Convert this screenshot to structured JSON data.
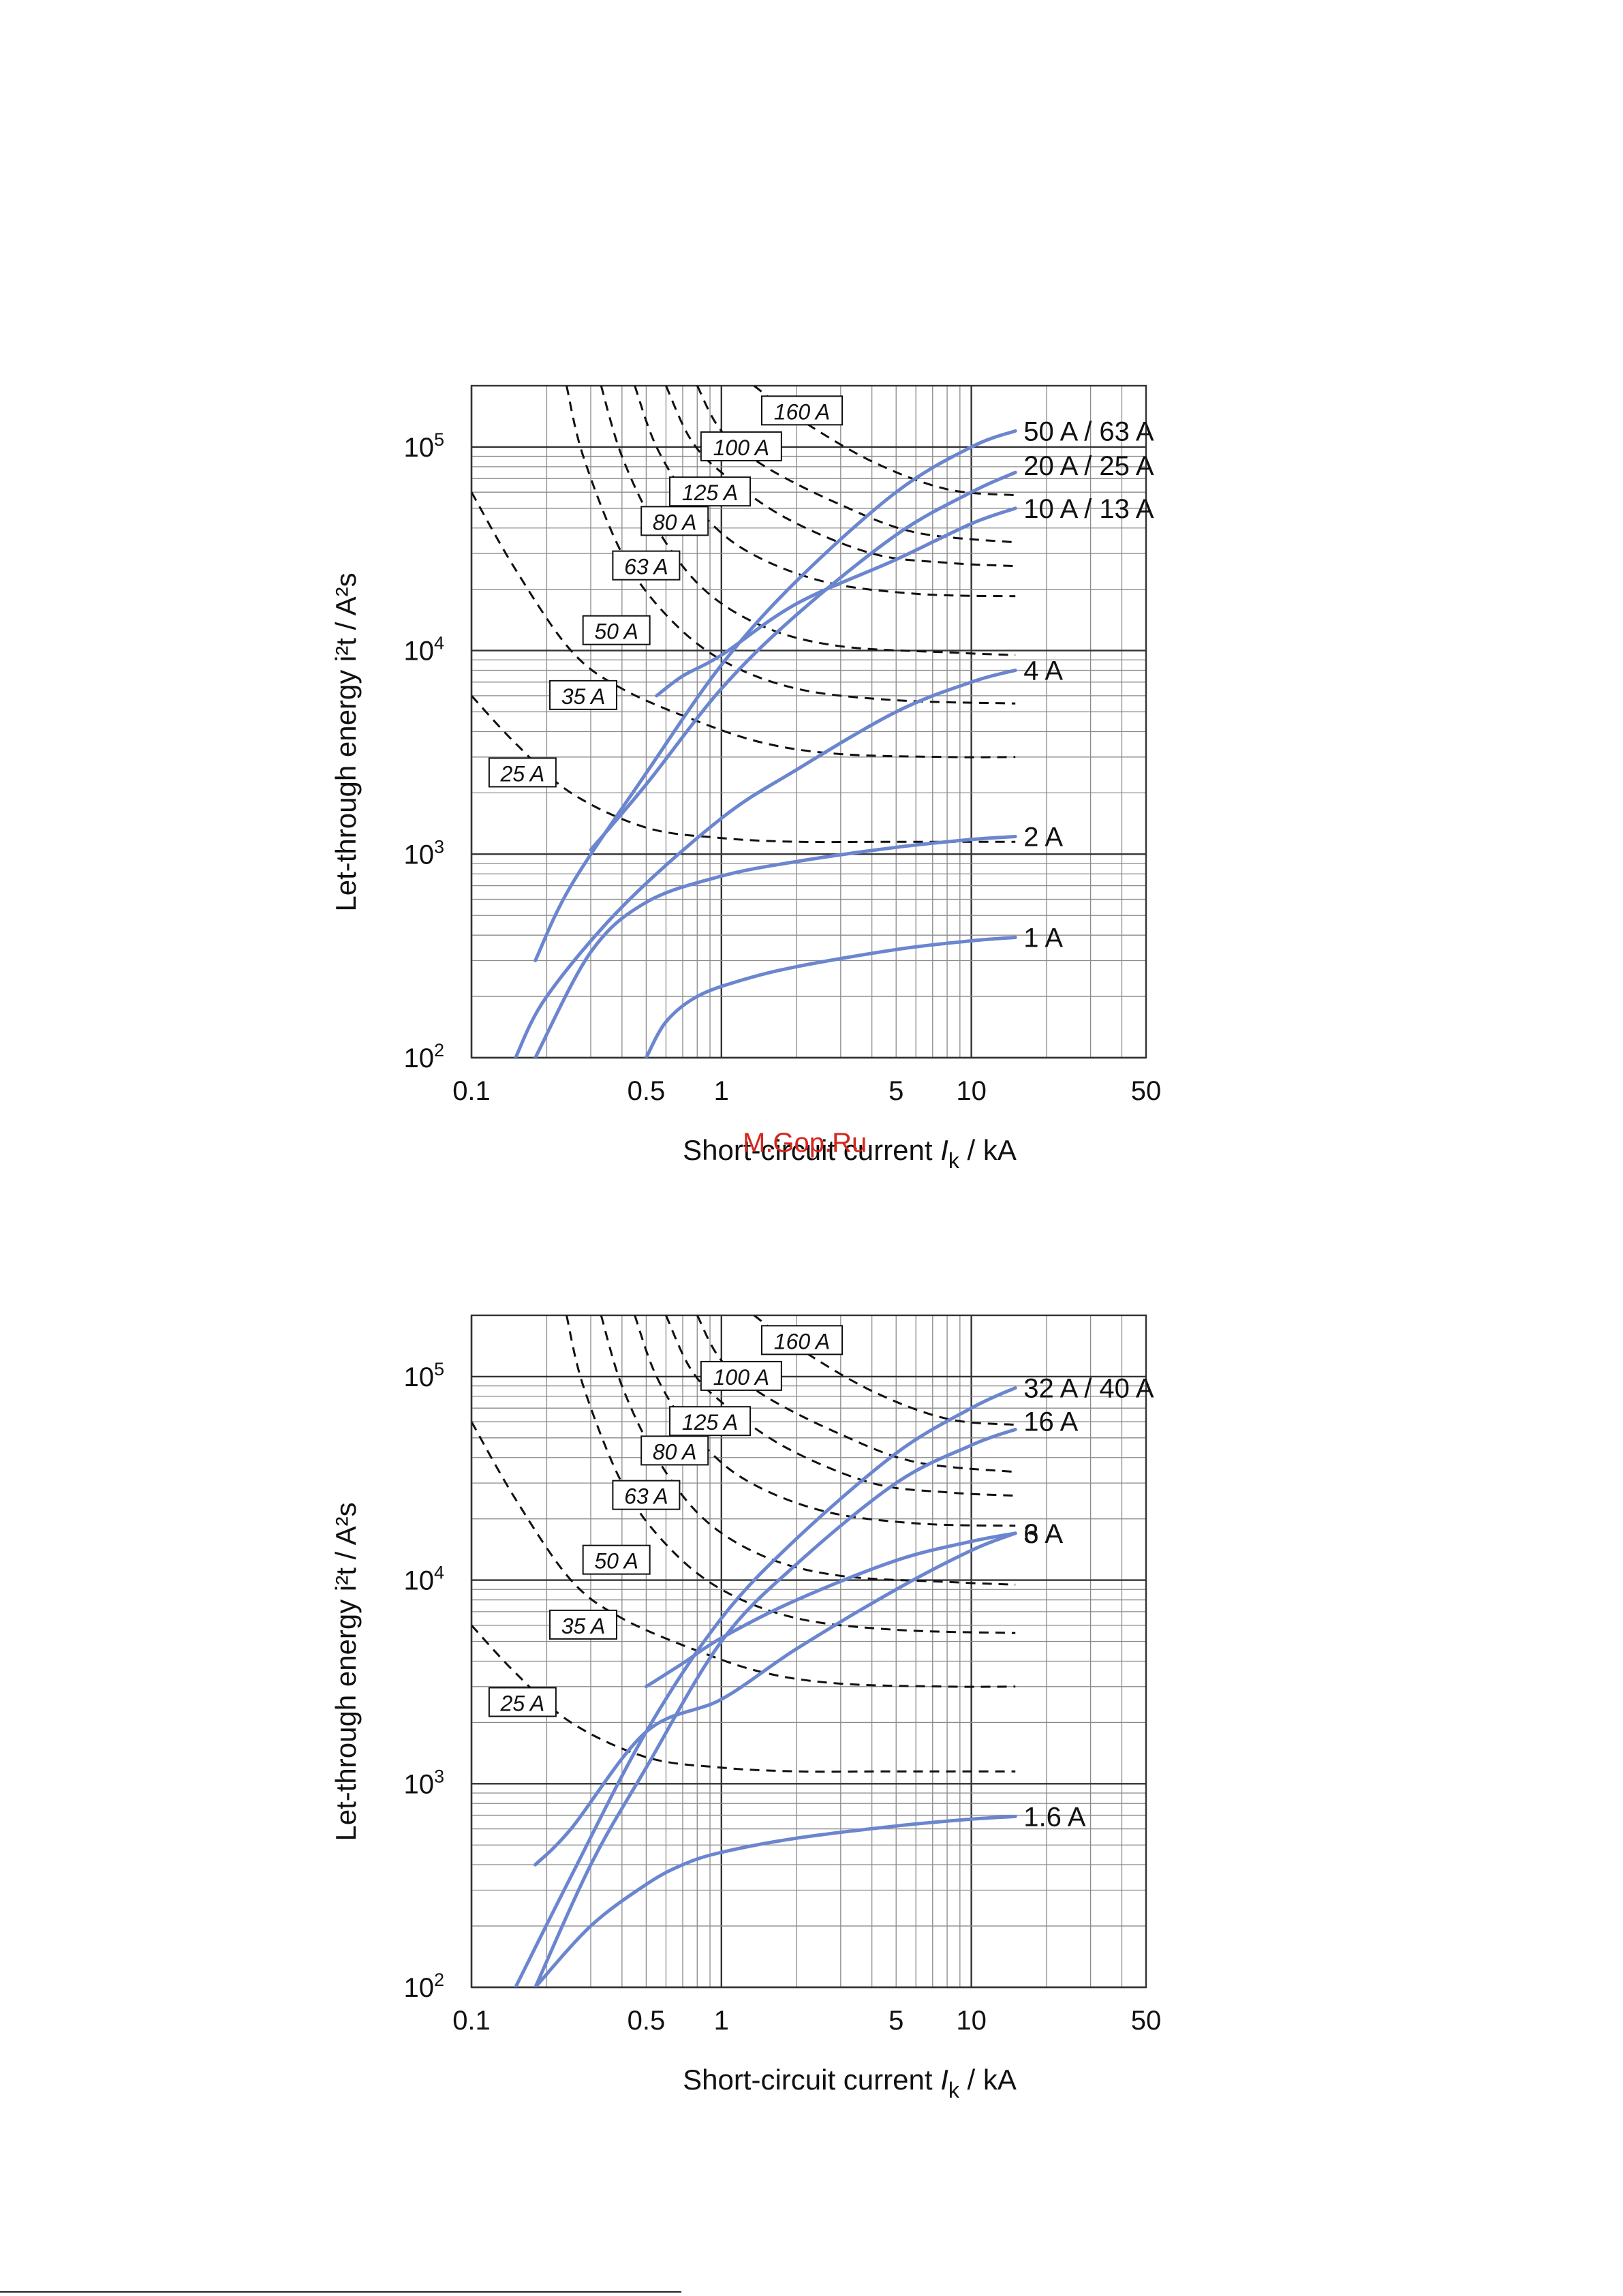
{
  "watermark": "M.Gop.Ru",
  "chart_data": [
    {
      "type": "line",
      "scale": "log-log",
      "xlabel": "Short-circuit current",
      "xlabel_symbol": "I",
      "xlabel_subscript": "k",
      "xlabel_unit": "/ kA",
      "ylabel": "Let-through energy i²t / A²s",
      "xlim": [
        0.1,
        50
      ],
      "ylim": [
        100,
        200000
      ],
      "xticks": [
        {
          "v": 0.1,
          "label": "0.1"
        },
        {
          "v": 0.5,
          "label": "0.5"
        },
        {
          "v": 1,
          "label": "1"
        },
        {
          "v": 5,
          "label": "5"
        },
        {
          "v": 10,
          "label": "10"
        },
        {
          "v": 50,
          "label": "50"
        }
      ],
      "yticks": [
        {
          "v": 100,
          "base": "10",
          "exp": "2"
        },
        {
          "v": 1000,
          "base": "10",
          "exp": "3"
        },
        {
          "v": 10000,
          "base": "10",
          "exp": "4"
        },
        {
          "v": 100000,
          "base": "10",
          "exp": "5"
        }
      ],
      "fuse_curves": [
        {
          "label": "25 A",
          "label_at": [
            0.16,
            2500
          ],
          "points": [
            [
              0.1,
              6000
            ],
            [
              0.15,
              3500
            ],
            [
              0.25,
              2000
            ],
            [
              0.5,
              1350
            ],
            [
              1,
              1200
            ],
            [
              2,
              1150
            ],
            [
              5,
              1150
            ],
            [
              15,
              1150
            ]
          ]
        },
        {
          "label": "35 A",
          "label_at": [
            0.28,
            6000
          ],
          "points": [
            [
              0.1,
              60000
            ],
            [
              0.15,
              25000
            ],
            [
              0.25,
              10000
            ],
            [
              0.4,
              6500
            ],
            [
              0.8,
              4500
            ],
            [
              1.5,
              3500
            ],
            [
              3,
              3100
            ],
            [
              8,
              3000
            ],
            [
              15,
              3000
            ]
          ]
        },
        {
          "label": "50 A",
          "label_at": [
            0.38,
            12500
          ],
          "points": [
            [
              0.24,
              200000
            ],
            [
              0.28,
              90000
            ],
            [
              0.4,
              30000
            ],
            [
              0.6,
              15000
            ],
            [
              1,
              9000
            ],
            [
              2,
              6500
            ],
            [
              5,
              5700
            ],
            [
              15,
              5500
            ]
          ]
        },
        {
          "label": "63 A",
          "label_at": [
            0.5,
            26000
          ],
          "points": [
            [
              0.33,
              200000
            ],
            [
              0.4,
              90000
            ],
            [
              0.55,
              40000
            ],
            [
              0.85,
              20000
            ],
            [
              1.5,
              13000
            ],
            [
              3,
              10500
            ],
            [
              8,
              9800
            ],
            [
              15,
              9500
            ]
          ]
        },
        {
          "label": "80 A",
          "label_at": [
            0.65,
            43000
          ],
          "points": [
            [
              0.45,
              200000
            ],
            [
              0.55,
              100000
            ],
            [
              0.75,
              55000
            ],
            [
              1.2,
              32000
            ],
            [
              2.5,
              22000
            ],
            [
              6,
              19000
            ],
            [
              15,
              18500
            ]
          ]
        },
        {
          "label": "125 A",
          "label_at": [
            0.9,
            60000
          ],
          "points": [
            [
              0.6,
              200000
            ],
            [
              0.75,
              110000
            ],
            [
              1,
              75000
            ],
            [
              1.8,
              45000
            ],
            [
              4,
              30000
            ],
            [
              8,
              27000
            ],
            [
              15,
              26000
            ]
          ]
        },
        {
          "label": "100 A",
          "label_at": [
            1.2,
            100000
          ],
          "points": [
            [
              0.8,
              200000
            ],
            [
              1,
              120000
            ],
            [
              1.5,
              80000
            ],
            [
              3,
              52000
            ],
            [
              6,
              38000
            ],
            [
              15,
              34000
            ]
          ]
        },
        {
          "label": "160 A",
          "label_at": [
            2.1,
            150000
          ],
          "points": [
            [
              1.35,
              200000
            ],
            [
              2,
              140000
            ],
            [
              4,
              85000
            ],
            [
              8,
              62000
            ],
            [
              15,
              58000
            ]
          ]
        }
      ],
      "series": [
        {
          "name": "50 A / 63 A",
          "points": [
            [
              0.18,
              300
            ],
            [
              0.25,
              700
            ],
            [
              0.5,
              2500
            ],
            [
              1,
              8500
            ],
            [
              2,
              22000
            ],
            [
              5,
              60000
            ],
            [
              10,
              100000
            ],
            [
              15,
              120000
            ]
          ]
        },
        {
          "name": "20 A / 25 A",
          "points": [
            [
              0.3,
              1050
            ],
            [
              0.5,
              2200
            ],
            [
              1,
              6500
            ],
            [
              2,
              15000
            ],
            [
              5,
              37000
            ],
            [
              10,
              60000
            ],
            [
              15,
              75000
            ]
          ]
        },
        {
          "name": "10 A / 13 A",
          "points": [
            [
              0.55,
              6000
            ],
            [
              0.7,
              7500
            ],
            [
              1,
              9500
            ],
            [
              2,
              17000
            ],
            [
              5,
              28000
            ],
            [
              10,
              42000
            ],
            [
              15,
              50000
            ]
          ]
        },
        {
          "name": "4 A",
          "points": [
            [
              0.15,
              100
            ],
            [
              0.2,
              200
            ],
            [
              0.4,
              550
            ],
            [
              1,
              1500
            ],
            [
              2,
              2600
            ],
            [
              5,
              5000
            ],
            [
              10,
              7000
            ],
            [
              15,
              8000
            ]
          ]
        },
        {
          "name": "2 A",
          "points": [
            [
              0.18,
              100
            ],
            [
              0.3,
              330
            ],
            [
              0.5,
              580
            ],
            [
              1,
              780
            ],
            [
              2,
              920
            ],
            [
              5,
              1080
            ],
            [
              10,
              1180
            ],
            [
              15,
              1220
            ]
          ]
        },
        {
          "name": "1 A",
          "points": [
            [
              0.5,
              100
            ],
            [
              0.6,
              150
            ],
            [
              0.8,
              200
            ],
            [
              1.2,
              240
            ],
            [
              2,
              280
            ],
            [
              5,
              340
            ],
            [
              10,
              375
            ],
            [
              15,
              390
            ]
          ]
        }
      ]
    },
    {
      "type": "line",
      "scale": "log-log",
      "xlabel": "Short-circuit current",
      "xlabel_symbol": "I",
      "xlabel_subscript": "k",
      "xlabel_unit": "/ kA",
      "ylabel": "Let-through energy i²t / A²s",
      "xlim": [
        0.1,
        50
      ],
      "ylim": [
        100,
        200000
      ],
      "xticks": [
        {
          "v": 0.1,
          "label": "0.1"
        },
        {
          "v": 0.5,
          "label": "0.5"
        },
        {
          "v": 1,
          "label": "1"
        },
        {
          "v": 5,
          "label": "5"
        },
        {
          "v": 10,
          "label": "10"
        },
        {
          "v": 50,
          "label": "50"
        }
      ],
      "yticks": [
        {
          "v": 100,
          "base": "10",
          "exp": "2"
        },
        {
          "v": 1000,
          "base": "10",
          "exp": "3"
        },
        {
          "v": 10000,
          "base": "10",
          "exp": "4"
        },
        {
          "v": 100000,
          "base": "10",
          "exp": "5"
        }
      ],
      "fuse_curves": [
        {
          "label": "25 A",
          "label_at": [
            0.16,
            2500
          ],
          "points": [
            [
              0.1,
              6000
            ],
            [
              0.15,
              3500
            ],
            [
              0.25,
              2000
            ],
            [
              0.5,
              1350
            ],
            [
              1,
              1200
            ],
            [
              2,
              1150
            ],
            [
              5,
              1150
            ],
            [
              15,
              1150
            ]
          ]
        },
        {
          "label": "35 A",
          "label_at": [
            0.28,
            6000
          ],
          "points": [
            [
              0.1,
              60000
            ],
            [
              0.15,
              25000
            ],
            [
              0.25,
              10000
            ],
            [
              0.4,
              6500
            ],
            [
              0.8,
              4500
            ],
            [
              1.5,
              3500
            ],
            [
              3,
              3100
            ],
            [
              8,
              3000
            ],
            [
              15,
              3000
            ]
          ]
        },
        {
          "label": "50 A",
          "label_at": [
            0.38,
            12500
          ],
          "points": [
            [
              0.24,
              200000
            ],
            [
              0.28,
              90000
            ],
            [
              0.4,
              30000
            ],
            [
              0.6,
              15000
            ],
            [
              1,
              9000
            ],
            [
              2,
              6500
            ],
            [
              5,
              5700
            ],
            [
              15,
              5500
            ]
          ]
        },
        {
          "label": "63 A",
          "label_at": [
            0.5,
            26000
          ],
          "points": [
            [
              0.33,
              200000
            ],
            [
              0.4,
              90000
            ],
            [
              0.55,
              40000
            ],
            [
              0.85,
              20000
            ],
            [
              1.5,
              13000
            ],
            [
              3,
              10500
            ],
            [
              8,
              9800
            ],
            [
              15,
              9500
            ]
          ]
        },
        {
          "label": "80 A",
          "label_at": [
            0.65,
            43000
          ],
          "points": [
            [
              0.45,
              200000
            ],
            [
              0.55,
              100000
            ],
            [
              0.75,
              55000
            ],
            [
              1.2,
              32000
            ],
            [
              2.5,
              22000
            ],
            [
              6,
              19000
            ],
            [
              15,
              18500
            ]
          ]
        },
        {
          "label": "125 A",
          "label_at": [
            0.9,
            60000
          ],
          "points": [
            [
              0.6,
              200000
            ],
            [
              0.75,
              110000
            ],
            [
              1,
              75000
            ],
            [
              1.8,
              45000
            ],
            [
              4,
              30000
            ],
            [
              8,
              27000
            ],
            [
              15,
              26000
            ]
          ]
        },
        {
          "label": "100 A",
          "label_at": [
            1.2,
            100000
          ],
          "points": [
            [
              0.8,
              200000
            ],
            [
              1,
              120000
            ],
            [
              1.5,
              80000
            ],
            [
              3,
              52000
            ],
            [
              6,
              38000
            ],
            [
              15,
              34000
            ]
          ]
        },
        {
          "label": "160 A",
          "label_at": [
            2.1,
            150000
          ],
          "points": [
            [
              1.35,
              200000
            ],
            [
              2,
              140000
            ],
            [
              4,
              85000
            ],
            [
              8,
              62000
            ],
            [
              15,
              58000
            ]
          ]
        }
      ],
      "series": [
        {
          "name": "32 A / 40 A",
          "points": [
            [
              0.15,
              100
            ],
            [
              0.25,
              350
            ],
            [
              0.5,
              1800
            ],
            [
              1,
              6500
            ],
            [
              2,
              16000
            ],
            [
              5,
              42000
            ],
            [
              10,
              70000
            ],
            [
              15,
              88000
            ]
          ]
        },
        {
          "name": "16 A",
          "points": [
            [
              0.18,
              100
            ],
            [
              0.3,
              400
            ],
            [
              0.5,
              1200
            ],
            [
              1,
              5000
            ],
            [
              2,
              12000
            ],
            [
              5,
              30000
            ],
            [
              10,
              46000
            ],
            [
              15,
              55000
            ]
          ]
        },
        {
          "name": "6 A",
          "points": [
            [
              0.18,
              400
            ],
            [
              0.25,
              600
            ],
            [
              0.5,
              1800
            ],
            [
              1,
              2600
            ],
            [
              2,
              4600
            ],
            [
              5,
              9000
            ],
            [
              10,
              14000
            ],
            [
              15,
              17000
            ]
          ]
        },
        {
          "name": "3 A",
          "points": [
            [
              0.5,
              3000
            ],
            [
              0.7,
              3900
            ],
            [
              1,
              5200
            ],
            [
              2,
              8000
            ],
            [
              5,
              12500
            ],
            [
              10,
              15500
            ],
            [
              15,
              17000
            ]
          ]
        },
        {
          "name": "1.6 A",
          "points": [
            [
              0.18,
              100
            ],
            [
              0.3,
              200
            ],
            [
              0.5,
              320
            ],
            [
              0.7,
              400
            ],
            [
              1,
              460
            ],
            [
              2,
              540
            ],
            [
              5,
              620
            ],
            [
              10,
              670
            ],
            [
              15,
              690
            ]
          ]
        }
      ]
    }
  ]
}
